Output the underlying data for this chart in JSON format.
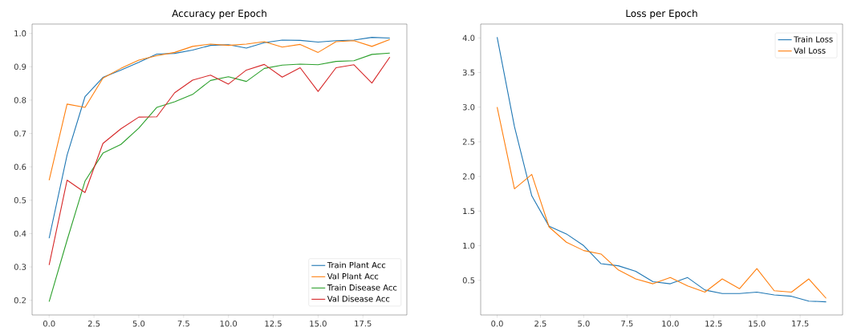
{
  "chart_data": [
    {
      "type": "line",
      "title": "Accuracy per Epoch",
      "x": [
        0,
        1,
        2,
        3,
        4,
        5,
        6,
        7,
        8,
        9,
        10,
        11,
        12,
        13,
        14,
        15,
        16,
        17,
        18,
        19
      ],
      "series": [
        {
          "name": "Train Plant Acc",
          "color": "#1f77b4",
          "values": [
            0.386,
            0.635,
            0.81,
            0.868,
            0.89,
            0.913,
            0.938,
            0.94,
            0.95,
            0.964,
            0.966,
            0.956,
            0.972,
            0.98,
            0.979,
            0.974,
            0.978,
            0.98,
            0.988,
            0.986
          ]
        },
        {
          "name": "Val Plant Acc",
          "color": "#ff7f0e",
          "values": [
            0.56,
            0.788,
            0.778,
            0.866,
            0.895,
            0.92,
            0.933,
            0.943,
            0.961,
            0.968,
            0.964,
            0.968,
            0.975,
            0.959,
            0.967,
            0.943,
            0.975,
            0.978,
            0.961,
            0.982
          ]
        },
        {
          "name": "Train Disease Acc",
          "color": "#2ca02c",
          "values": [
            0.196,
            0.38,
            0.557,
            0.641,
            0.667,
            0.716,
            0.778,
            0.795,
            0.817,
            0.859,
            0.87,
            0.856,
            0.895,
            0.905,
            0.908,
            0.906,
            0.916,
            0.918,
            0.937,
            0.941
          ]
        },
        {
          "name": "Val Disease Acc",
          "color": "#d62728",
          "values": [
            0.306,
            0.56,
            0.523,
            0.67,
            0.714,
            0.749,
            0.75,
            0.822,
            0.86,
            0.875,
            0.848,
            0.89,
            0.907,
            0.869,
            0.897,
            0.826,
            0.897,
            0.906,
            0.851,
            0.929
          ]
        }
      ],
      "xlim": [
        -0.95,
        19.95
      ],
      "ylim": [
        0.156,
        1.028
      ],
      "xticks": [
        {
          "value": 0,
          "label": "0.0"
        },
        2.5,
        {
          "value": 5,
          "label": "5.0"
        },
        7.5,
        {
          "value": 10,
          "label": "10.0"
        },
        12.5,
        {
          "value": 15,
          "label": "15.0"
        },
        17.5
      ],
      "yticks": [
        0.2,
        0.3,
        0.4,
        0.5,
        0.6,
        0.7,
        0.8,
        0.9,
        {
          "value": 1,
          "label": "1.0"
        }
      ],
      "legend": "bottom right"
    },
    {
      "type": "line",
      "title": "Loss per Epoch",
      "x": [
        0,
        1,
        2,
        3,
        4,
        5,
        6,
        7,
        8,
        9,
        10,
        11,
        12,
        13,
        14,
        15,
        16,
        17,
        18,
        19
      ],
      "series": [
        {
          "name": "Train Loss",
          "color": "#1f77b4",
          "values": [
            4.01,
            2.72,
            1.72,
            1.28,
            1.17,
            1.0,
            0.74,
            0.71,
            0.63,
            0.48,
            0.45,
            0.54,
            0.36,
            0.31,
            0.31,
            0.33,
            0.29,
            0.27,
            0.2,
            0.19
          ]
        },
        {
          "name": "Val Loss",
          "color": "#ff7f0e",
          "values": [
            3.0,
            1.82,
            2.03,
            1.27,
            1.05,
            0.93,
            0.88,
            0.65,
            0.52,
            0.45,
            0.54,
            0.42,
            0.33,
            0.52,
            0.38,
            0.67,
            0.35,
            0.33,
            0.52,
            0.24
          ]
        }
      ],
      "xlim": [
        -0.95,
        19.95
      ],
      "ylim": [
        0.0,
        4.2
      ],
      "xticks": [
        {
          "value": 0,
          "label": "0.0"
        },
        2.5,
        {
          "value": 5,
          "label": "5.0"
        },
        7.5,
        {
          "value": 10,
          "label": "10.0"
        },
        12.5,
        {
          "value": 15,
          "label": "15.0"
        },
        17.5
      ],
      "yticks": [
        0.5,
        {
          "value": 1,
          "label": "1.0"
        },
        1.5,
        {
          "value": 2,
          "label": "2.0"
        },
        2.5,
        {
          "value": 3,
          "label": "3.0"
        },
        3.5,
        {
          "value": 4,
          "label": "4.0"
        }
      ],
      "legend": "top right"
    }
  ]
}
